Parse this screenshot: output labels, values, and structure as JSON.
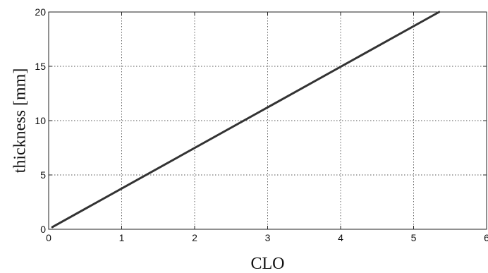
{
  "chart_data": {
    "type": "line",
    "xlabel": "CLO",
    "ylabel": "thickness [mm]",
    "xlim": [
      0,
      6
    ],
    "ylim": [
      0,
      20
    ],
    "xticks": [
      "0",
      "1",
      "2",
      "3",
      "4",
      "5",
      "6"
    ],
    "yticks": [
      "0",
      "5",
      "10",
      "15",
      "20"
    ],
    "grid": true,
    "series": [
      {
        "x": [
          0.05,
          5.35
        ],
        "y": [
          0.2,
          20
        ],
        "color": "#333333"
      }
    ]
  }
}
